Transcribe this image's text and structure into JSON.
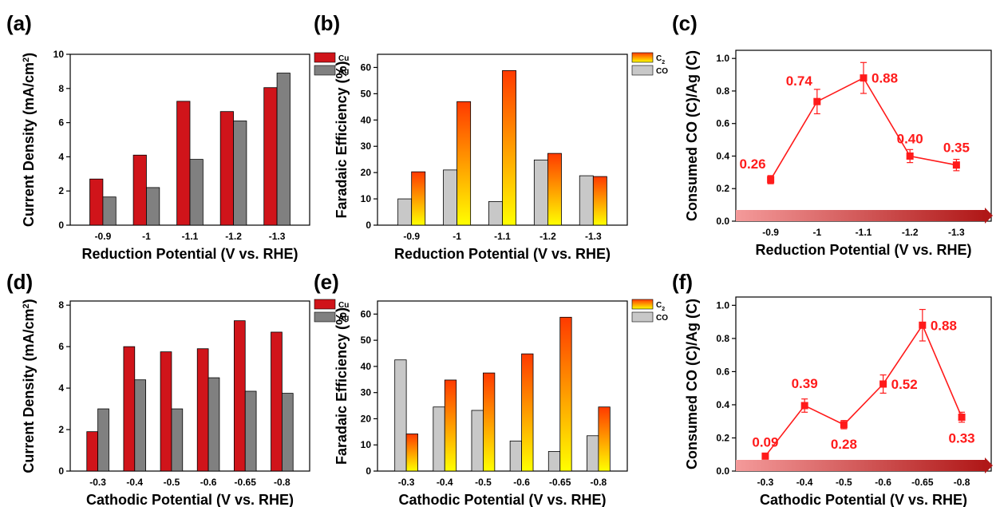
{
  "colors": {
    "cu": "#d0141a",
    "ag": "#808080",
    "c2_top": "#ff3a00",
    "c2_bottom": "#ffff00",
    "co": "#c8c8c8",
    "line": "#ff1a1a",
    "arrow_start": "#f49a9a",
    "arrow_end": "#b01818"
  },
  "chart_data": [
    {
      "panel": "(a)",
      "type": "bar",
      "categories": [
        "-0.9",
        "-1",
        "-1.1",
        "-1.2",
        "-1.3"
      ],
      "series": [
        {
          "name": "Cu",
          "values": [
            2.7,
            4.1,
            7.25,
            6.65,
            8.05
          ]
        },
        {
          "name": "Ag",
          "values": [
            1.65,
            2.2,
            3.85,
            6.1,
            8.9
          ]
        }
      ],
      "ylabel_text": "Current Density (mA/cm",
      "ylabel_sup": "2",
      "ylabel_close": ")",
      "xlabel": "Reduction Potential (V vs. RHE)",
      "ylim": [
        0,
        10
      ],
      "yticks": [
        "0",
        "2",
        "4",
        "6",
        "8",
        "10"
      ]
    },
    {
      "panel": "(b)",
      "type": "bar",
      "categories": [
        "-0.9",
        "-1",
        "-1.1",
        "-1.2",
        "-1.3"
      ],
      "series": [
        {
          "name": "CO",
          "values": [
            10,
            21,
            9,
            24.8,
            18.8
          ]
        },
        {
          "name_main": "C",
          "name_sub": "2",
          "values": [
            20.3,
            47,
            58.8,
            27.3,
            18.5
          ]
        }
      ],
      "ylabel": "Faradaic Efficiency (%)",
      "xlabel": "Reduction Potential (V vs. RHE)",
      "ylim": [
        0,
        65
      ],
      "yticks": [
        "0",
        "10",
        "20",
        "30",
        "40",
        "50",
        "60"
      ]
    },
    {
      "panel": "(c)",
      "type": "line",
      "x": [
        "-0.9",
        "-1",
        "-1.1",
        "-1.2",
        "-1.3"
      ],
      "values": [
        0.255,
        0.735,
        0.88,
        0.4,
        0.345
      ],
      "errors": [
        0.025,
        0.075,
        0.095,
        0.04,
        0.035
      ],
      "labels": [
        "0.26",
        "0.74",
        "0.88",
        "0.40",
        "0.35"
      ],
      "ylabel": "Consumed CO (C)/Ag (C)",
      "xlabel": "Reduction Potential (V vs. RHE)",
      "ylim": [
        0,
        1.05
      ],
      "yticks": [
        "0.0",
        "0.2",
        "0.4",
        "0.6",
        "0.8",
        "1.0"
      ]
    },
    {
      "panel": "(d)",
      "type": "bar",
      "categories": [
        "-0.3",
        "-0.4",
        "-0.5",
        "-0.6",
        "-0.65",
        "-0.8"
      ],
      "series": [
        {
          "name": "Cu",
          "values": [
            1.9,
            6.0,
            5.75,
            5.9,
            7.25,
            6.7
          ]
        },
        {
          "name": "Ag",
          "values": [
            3.0,
            4.4,
            3.0,
            4.5,
            3.85,
            3.75
          ]
        }
      ],
      "ylabel_text": "Current Density (mA/cm",
      "ylabel_sup": "2",
      "ylabel_close": ")",
      "xlabel": "Cathodic Potential (V vs. RHE)",
      "ylim": [
        0,
        8.2
      ],
      "yticks": [
        "0",
        "2",
        "4",
        "6",
        "8"
      ]
    },
    {
      "panel": "(e)",
      "type": "bar",
      "categories": [
        "-0.3",
        "-0.4",
        "-0.5",
        "-0.6",
        "-0.65",
        "-0.8"
      ],
      "series": [
        {
          "name": "CO",
          "values": [
            42.5,
            24.5,
            23.2,
            11.5,
            7.5,
            13.5
          ]
        },
        {
          "name_main": "C",
          "name_sub": "2",
          "values": [
            14.2,
            34.8,
            37.5,
            44.8,
            58.8,
            24.5
          ]
        }
      ],
      "ylabel": "Faradaic Efficiency (%)",
      "xlabel": "Cathodic Potential (V vs. RHE)",
      "ylim": [
        0,
        65
      ],
      "yticks": [
        "0",
        "10",
        "20",
        "30",
        "40",
        "50",
        "60"
      ]
    },
    {
      "panel": "(f)",
      "type": "line",
      "x": [
        "-0.3",
        "-0.4",
        "-0.5",
        "-0.6",
        "-0.65",
        "-0.8"
      ],
      "values": [
        0.09,
        0.395,
        0.28,
        0.525,
        0.88,
        0.325
      ],
      "errors": [
        0.012,
        0.04,
        0.025,
        0.055,
        0.095,
        0.03
      ],
      "labels": [
        "0.09",
        "0.39",
        "0.28",
        "0.52",
        "0.88",
        "0.33"
      ],
      "ylabel": "Consumed CO (C)/Ag (C)",
      "xlabel": "Cathodic Potential (V vs. RHE)",
      "ylim": [
        0,
        1.05
      ],
      "yticks": [
        "0.0",
        "0.2",
        "0.4",
        "0.6",
        "0.8",
        "1.0"
      ]
    }
  ]
}
